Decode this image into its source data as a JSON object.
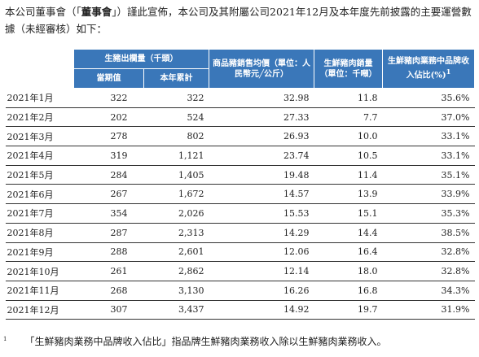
{
  "intro": {
    "before": "本公司董事會（「",
    "bold": "董事會",
    "after": "」）謹此宣佈，本公司及其附屬公司2021年12月及本年度先前披露的主要運營數據（未經審核）如下："
  },
  "table": {
    "header": {
      "hogs_sold": "生豬出欄量（千頭）",
      "current": "當期值",
      "cumulative": "本年累計",
      "avg_price": "商品豬銷售均價（單位：人民幣元╱公斤）",
      "pork_volume": "生鮮豬肉銷量（單位：千噸）",
      "brand_share": "生鮮豬肉業務中品牌收入佔比(%)",
      "brand_share_note": "1"
    },
    "rows": [
      [
        "2021年1月",
        "322",
        "322",
        "32.98",
        "11.8",
        "35.6%"
      ],
      [
        "2021年2月",
        "202",
        "524",
        "27.33",
        "7.7",
        "37.0%"
      ],
      [
        "2021年3月",
        "278",
        "802",
        "26.93",
        "10.0",
        "33.1%"
      ],
      [
        "2021年4月",
        "319",
        "1,121",
        "23.74",
        "10.5",
        "33.1%"
      ],
      [
        "2021年5月",
        "284",
        "1,405",
        "19.48",
        "11.4",
        "35.1%"
      ],
      [
        "2021年6月",
        "267",
        "1,672",
        "14.57",
        "13.9",
        "33.9%"
      ],
      [
        "2021年7月",
        "354",
        "2,026",
        "15.53",
        "15.1",
        "35.3%"
      ],
      [
        "2021年8月",
        "287",
        "2,313",
        "14.29",
        "14.4",
        "38.5%"
      ],
      [
        "2021年9月",
        "288",
        "2,601",
        "12.06",
        "16.4",
        "32.8%"
      ],
      [
        "2021年10月",
        "261",
        "2,862",
        "12.14",
        "18.0",
        "32.8%"
      ],
      [
        "2021年11月",
        "268",
        "3,130",
        "16.26",
        "16.8",
        "34.3%"
      ],
      [
        "2021年12月",
        "307",
        "3,437",
        "14.92",
        "19.7",
        "31.9%"
      ]
    ]
  },
  "footnote": {
    "marker": "1",
    "text": "「生鮮豬肉業務中品牌收入佔比」指品牌生鮮豬肉業務收入除以生鮮豬肉業務收入。"
  }
}
